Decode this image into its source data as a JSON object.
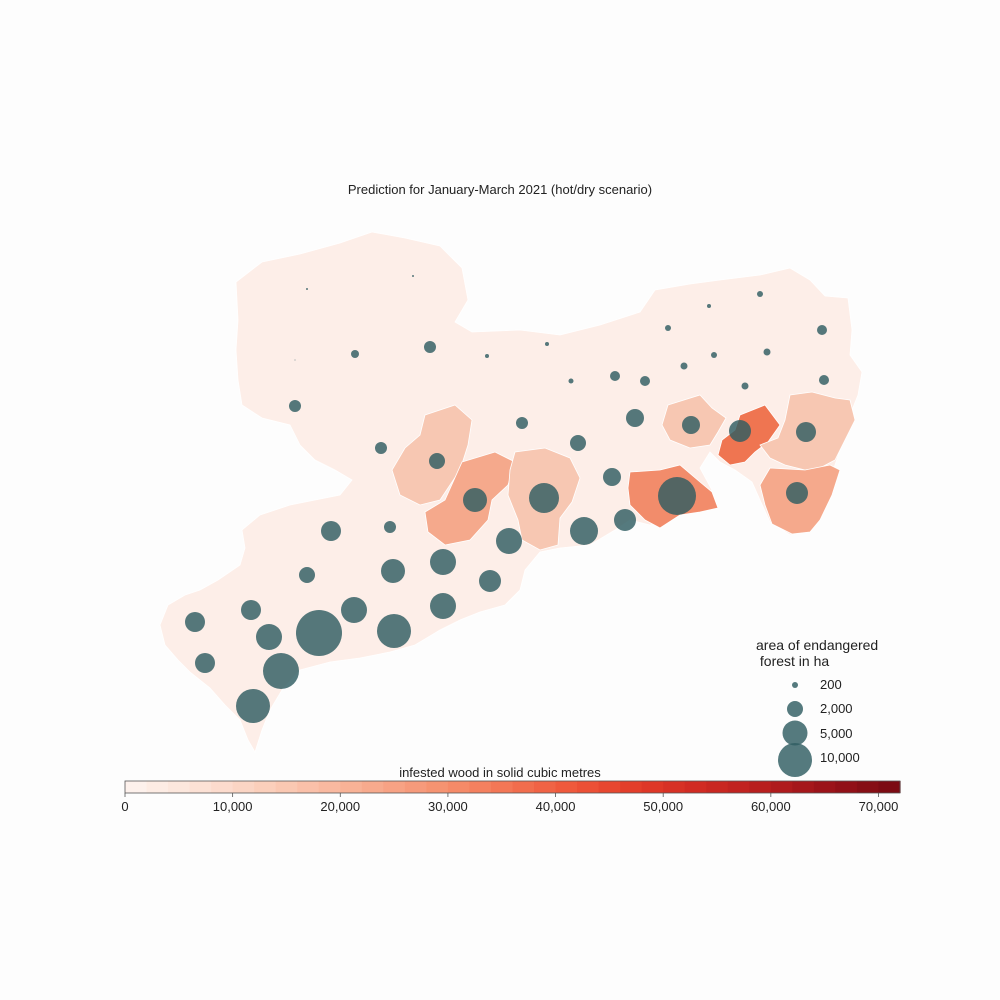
{
  "title": "Prediction for January-March 2021 (hot/dry scenario)",
  "colors": {
    "region_base": "#fdeee8",
    "region_light": "#f7c7b2",
    "region_mid": "#f5a98c",
    "region_strong": "#f28c6b",
    "region_stronger": "#ef7551",
    "bubble": "#2f5d62",
    "bubble_alpha": 0.82
  },
  "size_legend": {
    "title_line1": "area of endangered",
    "title_line2": " forest in ha",
    "entries": [
      {
        "label": "200",
        "value": 200
      },
      {
        "label": "2,000",
        "value": 2000
      },
      {
        "label": "5,000",
        "value": 5000
      },
      {
        "label": "10,000",
        "value": 10000
      }
    ]
  },
  "colorbar": {
    "label": "infested wood in solid cubic metres",
    "min": 0,
    "max": 72000,
    "ticks": [
      {
        "value": 0,
        "label": "0"
      },
      {
        "value": 10000,
        "label": "10,000"
      },
      {
        "value": 20000,
        "label": "20,000"
      },
      {
        "value": 30000,
        "label": "30,000"
      },
      {
        "value": 40000,
        "label": "40,000"
      },
      {
        "value": 50000,
        "label": "50,000"
      },
      {
        "value": 60000,
        "label": "60,000"
      },
      {
        "value": 70000,
        "label": "70,000"
      }
    ],
    "stops": [
      "#fdf1ec",
      "#fce2d6",
      "#fbd0bd",
      "#f9bba2",
      "#f7a587",
      "#f58e6c",
      "#f27251",
      "#ee5539",
      "#e23b28",
      "#cf2a22",
      "#b71e1e",
      "#9a1319",
      "#7c0b13"
    ]
  }
}
